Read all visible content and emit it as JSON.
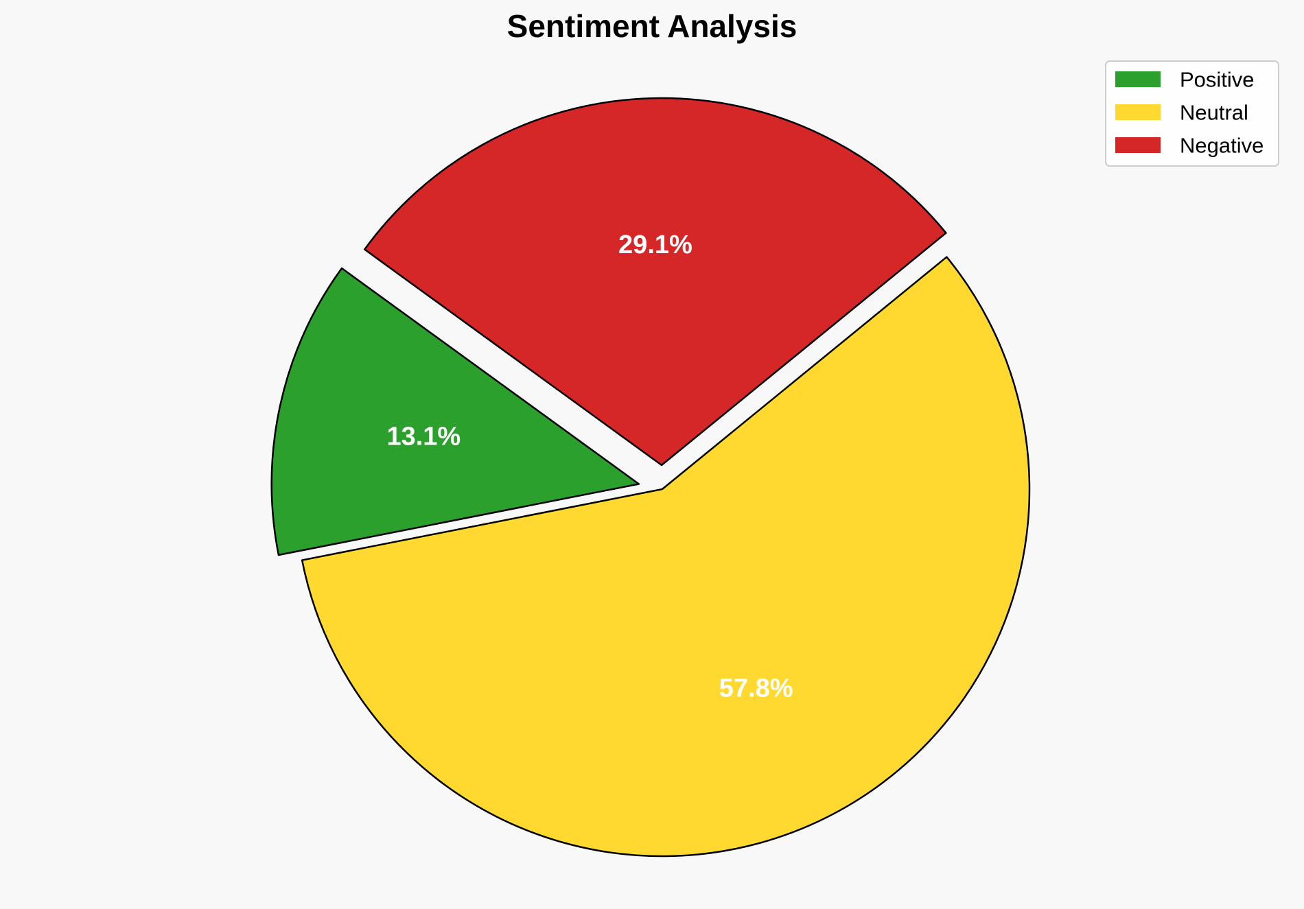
{
  "chart_data": {
    "type": "pie",
    "title": "Sentiment Analysis",
    "categories": [
      "Positive",
      "Neutral",
      "Negative"
    ],
    "values": [
      13.1,
      57.8,
      29.1
    ],
    "labels": [
      "13.1%",
      "57.8%",
      "29.1%"
    ],
    "colors": [
      "#2ca02c",
      "#ffd92f",
      "#d62728"
    ],
    "exploded": [
      true,
      false,
      true
    ],
    "start_angle_deg": 144,
    "direction": "counterclockwise",
    "legend_position": "top-right",
    "edge_color": "#000000",
    "label_color": "#ffffff"
  }
}
